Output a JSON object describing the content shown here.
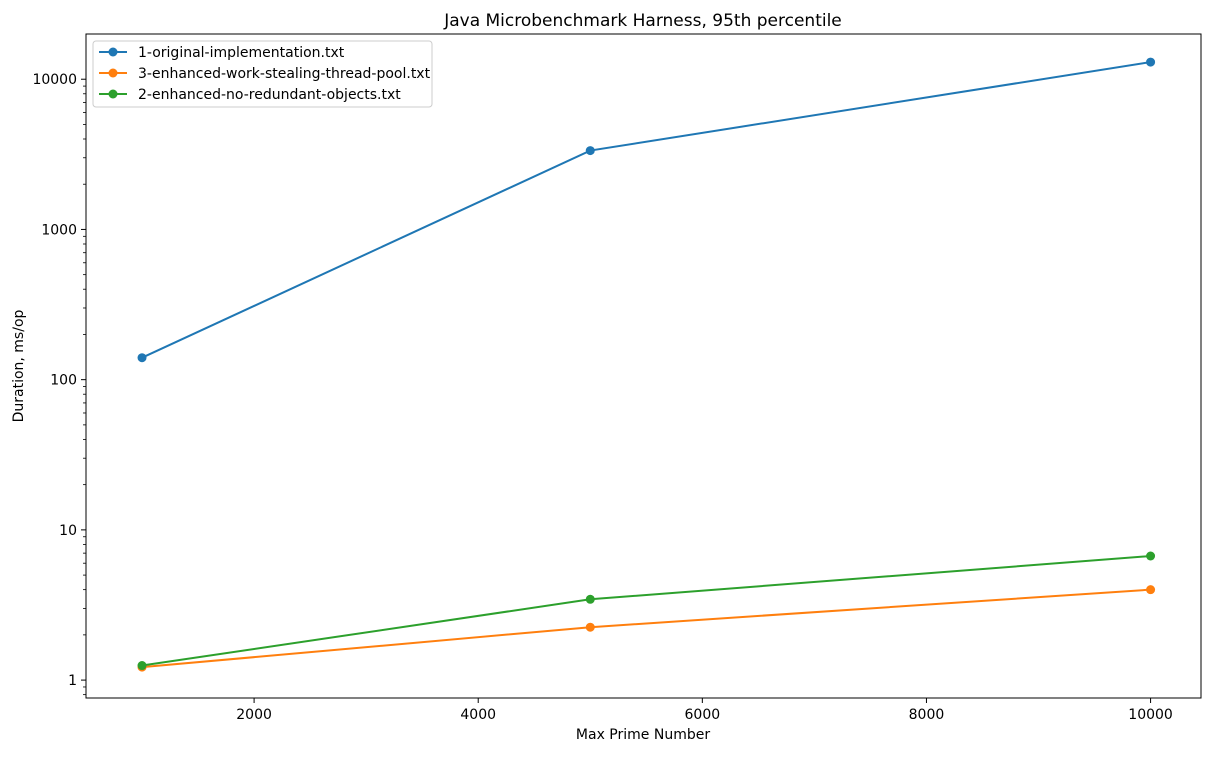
{
  "chart_data": {
    "type": "line",
    "title": "Java Microbenchmark Harness, 95th percentile",
    "xlabel": "Max Prime Number",
    "ylabel": "Duration, ms/op",
    "xlim": [
      500,
      10450
    ],
    "ylim": [
      0.76,
      20000
    ],
    "y_scale": "log",
    "grid": false,
    "legend_position": "upper-left",
    "x_ticks": [
      2000,
      4000,
      6000,
      8000,
      10000
    ],
    "y_ticks": [
      1,
      10,
      100,
      1000,
      10000
    ],
    "series": [
      {
        "name": "1-original-implementation.txt",
        "color": "#1f77b4",
        "x": [
          1000,
          5000,
          10000
        ],
        "y": [
          140,
          3350,
          13000
        ]
      },
      {
        "name": "3-enhanced-work-stealing-thread-pool.txt",
        "color": "#ff7f0e",
        "x": [
          1000,
          5000,
          10000
        ],
        "y": [
          1.22,
          2.25,
          4.0
        ]
      },
      {
        "name": "2-enhanced-no-redundant-objects.txt",
        "color": "#2ca02c",
        "x": [
          1000,
          5000,
          10000
        ],
        "y": [
          1.25,
          3.45,
          6.7
        ]
      }
    ]
  }
}
